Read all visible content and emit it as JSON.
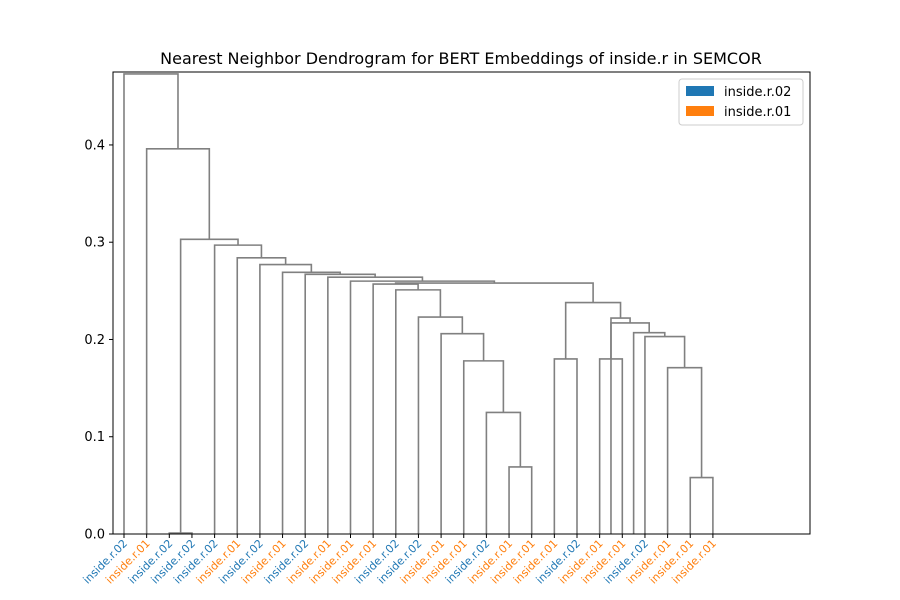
{
  "chart_data": {
    "type": "dendrogram",
    "title": "Nearest Neighbor Dendrogram for BERT Embeddings of inside.r in SEMCOR",
    "xlabel": "",
    "ylabel": "",
    "ylim": [
      0,
      0.475
    ],
    "yticks": [
      0.0,
      0.1,
      0.2,
      0.3,
      0.4
    ],
    "ytick_labels": [
      "0.0",
      "0.1",
      "0.2",
      "0.3",
      "0.4"
    ],
    "link_color": "#808080",
    "legend": {
      "position": "top-right",
      "entries": [
        {
          "label": "inside.r.02",
          "color": "#1f77b4"
        },
        {
          "label": "inside.r.01",
          "color": "#ff7f0e"
        }
      ]
    },
    "leaves": [
      {
        "label": "inside.r.02",
        "sense": "inside.r.02"
      },
      {
        "label": "inside.r.01",
        "sense": "inside.r.01"
      },
      {
        "label": "inside.r.02",
        "sense": "inside.r.02"
      },
      {
        "label": "inside.r.02",
        "sense": "inside.r.02"
      },
      {
        "label": "inside.r.02",
        "sense": "inside.r.02"
      },
      {
        "label": "inside.r.01",
        "sense": "inside.r.01"
      },
      {
        "label": "inside.r.02",
        "sense": "inside.r.02"
      },
      {
        "label": "inside.r.01",
        "sense": "inside.r.01"
      },
      {
        "label": "inside.r.02",
        "sense": "inside.r.02"
      },
      {
        "label": "inside.r.01",
        "sense": "inside.r.01"
      },
      {
        "label": "inside.r.01",
        "sense": "inside.r.01"
      },
      {
        "label": "inside.r.01",
        "sense": "inside.r.01"
      },
      {
        "label": "inside.r.02",
        "sense": "inside.r.02"
      },
      {
        "label": "inside.r.02",
        "sense": "inside.r.02"
      },
      {
        "label": "inside.r.01",
        "sense": "inside.r.01"
      },
      {
        "label": "inside.r.01",
        "sense": "inside.r.01"
      },
      {
        "label": "inside.r.02",
        "sense": "inside.r.02"
      },
      {
        "label": "inside.r.01",
        "sense": "inside.r.01"
      },
      {
        "label": "inside.r.01",
        "sense": "inside.r.01"
      },
      {
        "label": "inside.r.01",
        "sense": "inside.r.01"
      },
      {
        "label": "inside.r.02",
        "sense": "inside.r.02"
      },
      {
        "label": "inside.r.01",
        "sense": "inside.r.01"
      },
      {
        "label": "inside.r.01",
        "sense": "inside.r.01"
      },
      {
        "label": "inside.r.02",
        "sense": "inside.r.02"
      },
      {
        "label": "inside.r.01",
        "sense": "inside.r.01"
      },
      {
        "label": "inside.r.01",
        "sense": "inside.r.01"
      },
      {
        "label": "inside.r.01",
        "sense": "inside.r.01"
      }
    ],
    "merges": [
      {
        "id": "m1",
        "left": 2,
        "right": 3,
        "height": 0.001
      },
      {
        "id": "m2",
        "left": 25,
        "right": 26,
        "height": 0.058
      },
      {
        "id": "m3",
        "left": 17,
        "right": 18,
        "height": 0.069
      },
      {
        "id": "m4",
        "left": 16,
        "right": "m3",
        "height": 0.125
      },
      {
        "id": "m5",
        "left": 24,
        "right": "m2",
        "height": 0.171
      },
      {
        "id": "m6",
        "left": 15,
        "right": "m4",
        "height": 0.178
      },
      {
        "id": "m7",
        "left": 19,
        "right": 20,
        "height": 0.18
      },
      {
        "id": "m8",
        "left": 21,
        "right": 22,
        "height": 0.18
      },
      {
        "id": "m9",
        "left": 23,
        "right": "m5",
        "height": 0.203
      },
      {
        "id": "m10",
        "left": 14,
        "right": "m6",
        "height": 0.206
      },
      {
        "id": "m11",
        "left": 22.5,
        "right": "m9",
        "height": 0.207
      },
      {
        "id": "m12",
        "left": 21.5,
        "right": "m11",
        "height": 0.217
      },
      {
        "id": "m13",
        "left": 13,
        "right": "m10",
        "height": 0.223
      },
      {
        "id": "m14",
        "left": "m8",
        "right": "m12",
        "height": 0.222
      },
      {
        "id": "m15",
        "left": "m7",
        "right": "m14",
        "height": 0.238
      },
      {
        "id": "m16",
        "left": 12,
        "right": "m13",
        "height": 0.251
      },
      {
        "id": "m17",
        "left": 11,
        "right": "m16",
        "height": 0.257
      },
      {
        "id": "m18",
        "left": "m17",
        "right": "m15",
        "height": 0.258
      },
      {
        "id": "m19",
        "left": 10,
        "right": "m18",
        "height": 0.26
      },
      {
        "id": "m20",
        "left": 9,
        "right": "m19",
        "height": 0.264
      },
      {
        "id": "m21",
        "left": 8,
        "right": "m20",
        "height": 0.267
      },
      {
        "id": "m22",
        "left": 7,
        "right": "m21",
        "height": 0.269
      },
      {
        "id": "m23",
        "left": 6,
        "right": "m22",
        "height": 0.277
      },
      {
        "id": "m24",
        "left": 5,
        "right": "m23",
        "height": 0.284
      },
      {
        "id": "m25",
        "left": 4,
        "right": "m24",
        "height": 0.297
      },
      {
        "id": "m26",
        "left": "m1",
        "right": "m25",
        "height": 0.303
      },
      {
        "id": "m27",
        "left": 1,
        "right": "m26",
        "height": 0.396
      },
      {
        "id": "m28",
        "left": 0,
        "right": "m27",
        "height": 0.473
      }
    ]
  }
}
